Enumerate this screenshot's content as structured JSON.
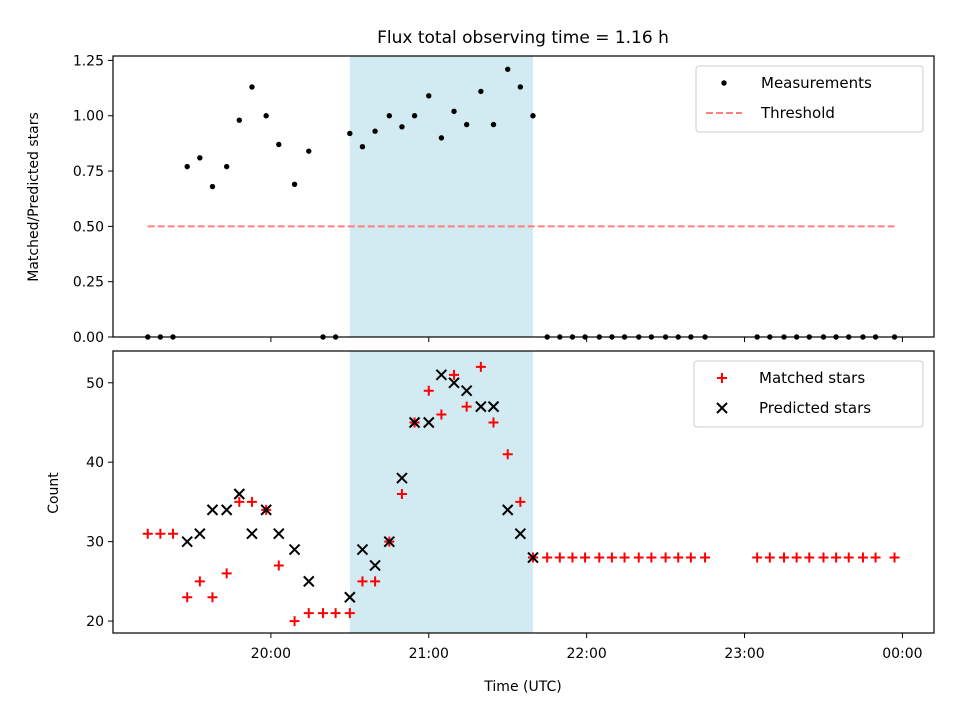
{
  "chart_data": {
    "type": "scatter",
    "title": "Flux total observing time = 1.16 h",
    "xlabel": "Time (UTC)",
    "x_unit": "hours since 00:00 UTC of the observing night (times after midnight exceed 24)",
    "xlim": [
      19.0,
      24.2
    ],
    "x_ticks": [
      {
        "value": 20.0,
        "label": "20:00"
      },
      {
        "value": 21.0,
        "label": "21:00"
      },
      {
        "value": 22.0,
        "label": "22:00"
      },
      {
        "value": 23.0,
        "label": "23:00"
      },
      {
        "value": 24.0,
        "label": "00:00"
      }
    ],
    "highlight_span": {
      "x_start": 20.5,
      "x_end": 21.66,
      "color": "#add8e6"
    },
    "panels": [
      {
        "id": "ratio",
        "ylabel": "Matched/Predicted stars",
        "ylim": [
          0.0,
          1.27
        ],
        "yticks": [
          0.0,
          0.25,
          0.5,
          0.75,
          1.0,
          1.25
        ],
        "ytick_labels": [
          "0.00",
          "0.25",
          "0.50",
          "0.75",
          "1.00",
          "1.25"
        ],
        "legend": {
          "position": "top-right"
        },
        "series": [
          {
            "name": "Measurements",
            "marker": "dot",
            "color": "#000000",
            "points": [
              [
                19.22,
                0.0
              ],
              [
                19.3,
                0.0
              ],
              [
                19.38,
                0.0
              ],
              [
                19.47,
                0.77
              ],
              [
                19.55,
                0.81
              ],
              [
                19.63,
                0.68
              ],
              [
                19.72,
                0.77
              ],
              [
                19.8,
                0.98
              ],
              [
                19.88,
                1.13
              ],
              [
                19.97,
                1.0
              ],
              [
                20.05,
                0.87
              ],
              [
                20.15,
                0.69
              ],
              [
                20.24,
                0.84
              ],
              [
                20.33,
                0.0
              ],
              [
                20.41,
                0.0
              ],
              [
                20.5,
                0.92
              ],
              [
                20.58,
                0.86
              ],
              [
                20.66,
                0.93
              ],
              [
                20.75,
                1.0
              ],
              [
                20.83,
                0.95
              ],
              [
                20.91,
                1.0
              ],
              [
                21.0,
                1.09
              ],
              [
                21.08,
                0.9
              ],
              [
                21.16,
                1.02
              ],
              [
                21.24,
                0.96
              ],
              [
                21.33,
                1.11
              ],
              [
                21.41,
                0.96
              ],
              [
                21.5,
                1.21
              ],
              [
                21.58,
                1.13
              ],
              [
                21.66,
                1.0
              ],
              [
                21.75,
                0.0
              ],
              [
                21.83,
                0.0
              ],
              [
                21.91,
                0.0
              ],
              [
                21.99,
                0.0
              ],
              [
                22.08,
                0.0
              ],
              [
                22.16,
                0.0
              ],
              [
                22.24,
                0.0
              ],
              [
                22.33,
                0.0
              ],
              [
                22.41,
                0.0
              ],
              [
                22.5,
                0.0
              ],
              [
                22.58,
                0.0
              ],
              [
                22.66,
                0.0
              ],
              [
                22.75,
                0.0
              ],
              [
                23.08,
                0.0
              ],
              [
                23.16,
                0.0
              ],
              [
                23.25,
                0.0
              ],
              [
                23.33,
                0.0
              ],
              [
                23.41,
                0.0
              ],
              [
                23.5,
                0.0
              ],
              [
                23.58,
                0.0
              ],
              [
                23.66,
                0.0
              ],
              [
                23.75,
                0.0
              ],
              [
                23.83,
                0.0
              ],
              [
                23.95,
                0.0
              ]
            ]
          },
          {
            "name": "Threshold",
            "marker": "dashed-line",
            "color": "#ff7f7f",
            "points": [
              [
                19.22,
                0.5
              ],
              [
                23.95,
                0.5
              ]
            ]
          }
        ]
      },
      {
        "id": "count",
        "ylabel": "Count",
        "ylim": [
          18.5,
          54.0
        ],
        "yticks": [
          20,
          30,
          40,
          50
        ],
        "ytick_labels": [
          "20",
          "30",
          "40",
          "50"
        ],
        "legend": {
          "position": "top-right"
        },
        "series": [
          {
            "name": "Matched stars",
            "marker": "plus",
            "color": "#ff0000",
            "points": [
              [
                19.22,
                31
              ],
              [
                19.3,
                31
              ],
              [
                19.38,
                31
              ],
              [
                19.47,
                23
              ],
              [
                19.55,
                25
              ],
              [
                19.63,
                23
              ],
              [
                19.72,
                26
              ],
              [
                19.8,
                35
              ],
              [
                19.88,
                35
              ],
              [
                19.97,
                34
              ],
              [
                20.05,
                27
              ],
              [
                20.15,
                20
              ],
              [
                20.24,
                21
              ],
              [
                20.33,
                21
              ],
              [
                20.41,
                21
              ],
              [
                20.5,
                21
              ],
              [
                20.58,
                25
              ],
              [
                20.66,
                25
              ],
              [
                20.75,
                30
              ],
              [
                20.83,
                36
              ],
              [
                20.91,
                45
              ],
              [
                21.0,
                49
              ],
              [
                21.08,
                46
              ],
              [
                21.16,
                51
              ],
              [
                21.24,
                47
              ],
              [
                21.33,
                52
              ],
              [
                21.41,
                45
              ],
              [
                21.5,
                41
              ],
              [
                21.58,
                35
              ],
              [
                21.66,
                28
              ],
              [
                21.75,
                28
              ],
              [
                21.83,
                28
              ],
              [
                21.91,
                28
              ],
              [
                21.99,
                28
              ],
              [
                22.08,
                28
              ],
              [
                22.16,
                28
              ],
              [
                22.24,
                28
              ],
              [
                22.33,
                28
              ],
              [
                22.41,
                28
              ],
              [
                22.5,
                28
              ],
              [
                22.58,
                28
              ],
              [
                22.66,
                28
              ],
              [
                22.75,
                28
              ],
              [
                23.08,
                28
              ],
              [
                23.16,
                28
              ],
              [
                23.25,
                28
              ],
              [
                23.33,
                28
              ],
              [
                23.41,
                28
              ],
              [
                23.5,
                28
              ],
              [
                23.58,
                28
              ],
              [
                23.66,
                28
              ],
              [
                23.75,
                28
              ],
              [
                23.83,
                28
              ],
              [
                23.95,
                28
              ]
            ]
          },
          {
            "name": "Predicted stars",
            "marker": "x",
            "color": "#000000",
            "points": [
              [
                19.47,
                30
              ],
              [
                19.55,
                31
              ],
              [
                19.63,
                34
              ],
              [
                19.72,
                34
              ],
              [
                19.8,
                36
              ],
              [
                19.88,
                31
              ],
              [
                19.97,
                34
              ],
              [
                20.05,
                31
              ],
              [
                20.15,
                29
              ],
              [
                20.24,
                25
              ],
              [
                20.5,
                23
              ],
              [
                20.58,
                29
              ],
              [
                20.66,
                27
              ],
              [
                20.75,
                30
              ],
              [
                20.83,
                38
              ],
              [
                20.91,
                45
              ],
              [
                21.0,
                45
              ],
              [
                21.08,
                51
              ],
              [
                21.16,
                50
              ],
              [
                21.24,
                49
              ],
              [
                21.33,
                47
              ],
              [
                21.41,
                47
              ],
              [
                21.5,
                34
              ],
              [
                21.58,
                31
              ],
              [
                21.66,
                28
              ]
            ]
          }
        ]
      }
    ]
  }
}
